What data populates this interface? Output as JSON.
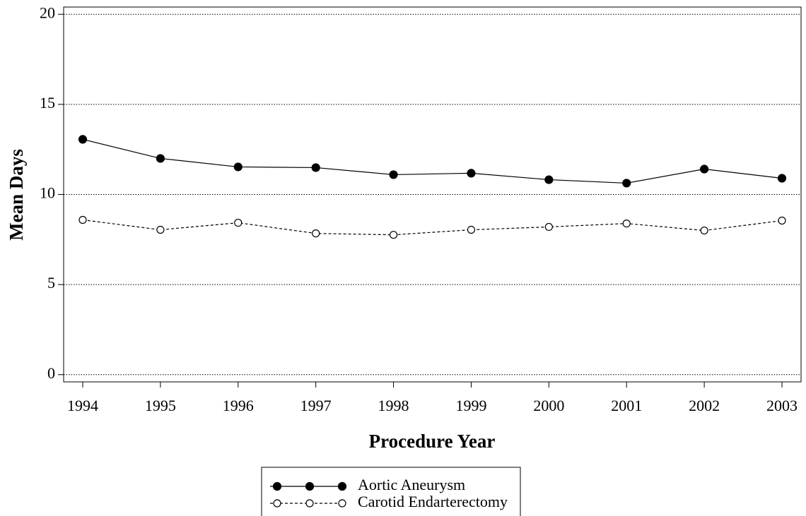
{
  "chart_data": {
    "type": "line",
    "xlabel": "Procedure Year",
    "ylabel": "Mean Days",
    "categories": [
      "1994",
      "1995",
      "1996",
      "1997",
      "1998",
      "1999",
      "2000",
      "2001",
      "2002",
      "2003"
    ],
    "series": [
      {
        "name": "Aortic Aneurysm",
        "color": "#000000",
        "marker": "filled",
        "linestyle": "solid",
        "values": [
          13.06,
          12.0,
          11.53,
          11.49,
          11.1,
          11.18,
          10.82,
          10.63,
          11.41,
          10.9
        ]
      },
      {
        "name": "Carotid Endarterectomy",
        "color": "#000000",
        "marker": "open",
        "linestyle": "dashed",
        "values": [
          8.59,
          8.04,
          8.43,
          7.84,
          7.76,
          8.04,
          8.2,
          8.39,
          8.0,
          8.55
        ]
      }
    ],
    "ylim": [
      -0.4,
      20.4
    ],
    "yticks": [
      0,
      5,
      10,
      15,
      20
    ],
    "grid": true,
    "legend": "bottom"
  }
}
